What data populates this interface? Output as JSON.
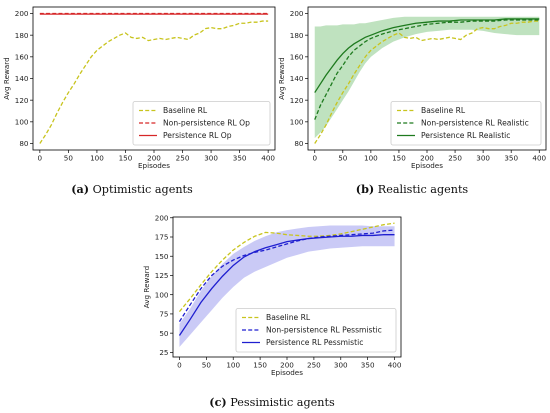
{
  "figure": {
    "panels": [
      {
        "caption_label": "(a)",
        "caption_text": " Optimistic agents"
      },
      {
        "caption_label": "(b)",
        "caption_text": " Realistic agents"
      },
      {
        "caption_label": "(c)",
        "caption_text": " Pessimistic agents"
      }
    ]
  },
  "chart_data": [
    {
      "type": "line",
      "title": "",
      "xlabel": "Episodes",
      "ylabel": "Avg Reward",
      "xlim": [
        -12,
        412
      ],
      "ylim": [
        74,
        206
      ],
      "xticks": [
        0,
        50,
        100,
        150,
        200,
        250,
        300,
        350,
        400
      ],
      "yticks": [
        80,
        100,
        120,
        140,
        160,
        180,
        200
      ],
      "legend_position": "lower-right",
      "series": [
        {
          "name": "Baseline RL",
          "color": "#c8c41e",
          "style": "dashed",
          "x": [
            0,
            10,
            20,
            30,
            40,
            50,
            60,
            70,
            80,
            90,
            100,
            110,
            120,
            130,
            140,
            150,
            160,
            170,
            180,
            190,
            200,
            210,
            220,
            230,
            240,
            250,
            260,
            270,
            280,
            290,
            300,
            310,
            320,
            330,
            340,
            350,
            360,
            370,
            380,
            390,
            400
          ],
          "values": [
            80,
            88,
            97,
            108,
            118,
            127,
            135,
            144,
            152,
            160,
            166,
            170,
            174,
            177,
            180,
            182,
            178,
            177,
            178,
            175,
            176,
            177,
            176,
            177,
            178,
            177,
            176,
            180,
            182,
            186,
            187,
            186,
            186,
            188,
            189,
            191,
            191,
            192,
            192,
            193,
            193
          ]
        },
        {
          "name": "Non-persistence RL Op",
          "color": "#d62728",
          "style": "dashed",
          "x": [
            0,
            400
          ],
          "values": [
            200,
            200
          ]
        },
        {
          "name": "Persistence RL Op",
          "color": "#d62728",
          "style": "solid",
          "x": [
            0,
            400
          ],
          "values": [
            199.4,
            199.4
          ]
        }
      ]
    },
    {
      "type": "line",
      "title": "",
      "xlabel": "Episodes",
      "ylabel": "Avg Reward",
      "xlim": [
        -12,
        412
      ],
      "ylim": [
        74,
        206
      ],
      "xticks": [
        0,
        50,
        100,
        150,
        200,
        250,
        300,
        350,
        400
      ],
      "yticks": [
        80,
        100,
        120,
        140,
        160,
        180,
        200
      ],
      "legend_position": "lower-right",
      "band_color": "#2ca02c",
      "series": [
        {
          "name": "Baseline RL",
          "color": "#c8c41e",
          "style": "dashed",
          "x": [
            0,
            10,
            20,
            30,
            40,
            50,
            60,
            70,
            80,
            90,
            100,
            110,
            120,
            130,
            140,
            150,
            160,
            170,
            180,
            190,
            200,
            210,
            220,
            230,
            240,
            250,
            260,
            270,
            280,
            290,
            300,
            310,
            320,
            330,
            340,
            350,
            360,
            370,
            380,
            390,
            400
          ],
          "values": [
            80,
            88,
            97,
            108,
            118,
            127,
            135,
            144,
            152,
            160,
            166,
            170,
            174,
            177,
            180,
            182,
            178,
            177,
            178,
            175,
            176,
            177,
            176,
            177,
            178,
            177,
            176,
            180,
            182,
            186,
            187,
            186,
            186,
            188,
            189,
            191,
            191,
            192,
            192,
            193,
            193
          ]
        },
        {
          "name": "Non-persistence RL Realistic",
          "color": "#1e7a1e",
          "style": "dashed",
          "x": [
            0,
            10,
            20,
            30,
            40,
            50,
            60,
            70,
            80,
            90,
            100,
            120,
            140,
            160,
            180,
            200,
            220,
            240,
            260,
            280,
            300,
            320,
            340,
            360,
            380,
            400
          ],
          "values": [
            102,
            115,
            125,
            135,
            145,
            152,
            160,
            166,
            170,
            174,
            177,
            181,
            184,
            186,
            188,
            190,
            191,
            192,
            192,
            193,
            193,
            193,
            194,
            194,
            194,
            194
          ]
        },
        {
          "name": "Persistence RL Realistic",
          "color": "#1e7a1e",
          "style": "solid",
          "x": [
            0,
            10,
            20,
            30,
            40,
            50,
            60,
            70,
            80,
            90,
            100,
            120,
            140,
            160,
            180,
            200,
            220,
            240,
            260,
            280,
            300,
            320,
            340,
            360,
            380,
            400
          ],
          "values": [
            127,
            135,
            143,
            150,
            157,
            163,
            168,
            172,
            175,
            178,
            180,
            184,
            187,
            189,
            191,
            192,
            193,
            193,
            194,
            194,
            194,
            194,
            195,
            195,
            195,
            195
          ],
          "band_upper": [
            188,
            188,
            189,
            189,
            189,
            190,
            190,
            190,
            191,
            191,
            192,
            194,
            196,
            197,
            197,
            197,
            197,
            197,
            197,
            197,
            197,
            197,
            197,
            197,
            197,
            197
          ],
          "band_lower": [
            85,
            90,
            96,
            104,
            112,
            120,
            128,
            137,
            146,
            154,
            160,
            168,
            174,
            178,
            181,
            183,
            184,
            185,
            185,
            185,
            184,
            182,
            181,
            180,
            180,
            180
          ]
        }
      ]
    },
    {
      "type": "line",
      "title": "",
      "xlabel": "Episodes",
      "ylabel": "Avg Reward",
      "xlim": [
        -12,
        412
      ],
      "ylim": [
        19,
        201
      ],
      "xticks": [
        0,
        50,
        100,
        150,
        200,
        250,
        300,
        350,
        400
      ],
      "yticks": [
        25,
        50,
        75,
        100,
        125,
        150,
        175,
        200
      ],
      "legend_position": "lower-right",
      "band_color": "#5050e0",
      "series": [
        {
          "name": "Baseline RL",
          "color": "#c8c41e",
          "style": "dashed",
          "x": [
            0,
            20,
            40,
            60,
            80,
            100,
            120,
            140,
            160,
            180,
            200,
            220,
            240,
            260,
            280,
            300,
            320,
            340,
            360,
            380,
            400
          ],
          "values": [
            78,
            95,
            113,
            130,
            145,
            158,
            168,
            176,
            181,
            180,
            178,
            177,
            176,
            176,
            177,
            179,
            182,
            185,
            188,
            191,
            193
          ]
        },
        {
          "name": "Non-persistence RL Pessmistic",
          "color": "#1f1fd0",
          "style": "dashed",
          "x": [
            0,
            20,
            40,
            60,
            80,
            100,
            120,
            140,
            160,
            180,
            200,
            220,
            240,
            260,
            280,
            300,
            320,
            340,
            360,
            380,
            400
          ],
          "values": [
            65,
            87,
            108,
            125,
            137,
            145,
            151,
            155,
            158,
            162,
            166,
            170,
            173,
            175,
            176,
            177,
            178,
            179,
            180,
            183,
            184
          ]
        },
        {
          "name": "Persistence RL Pessmistic",
          "color": "#1f1fd0",
          "style": "solid",
          "x": [
            0,
            20,
            40,
            60,
            80,
            100,
            120,
            140,
            160,
            180,
            200,
            220,
            240,
            260,
            280,
            300,
            320,
            340,
            360,
            380,
            400
          ],
          "values": [
            47,
            68,
            90,
            108,
            124,
            138,
            149,
            156,
            161,
            165,
            169,
            171,
            173,
            174,
            175,
            176,
            176,
            177,
            177,
            178,
            178
          ],
          "band_upper": [
            62,
            82,
            105,
            124,
            140,
            153,
            162,
            170,
            176,
            181,
            184,
            186,
            188,
            189,
            190,
            190,
            190,
            190,
            189,
            189,
            189
          ],
          "band_lower": [
            32,
            48,
            64,
            80,
            96,
            110,
            122,
            130,
            136,
            142,
            148,
            152,
            156,
            158,
            160,
            161,
            162,
            163,
            163,
            163,
            163
          ]
        }
      ]
    }
  ]
}
